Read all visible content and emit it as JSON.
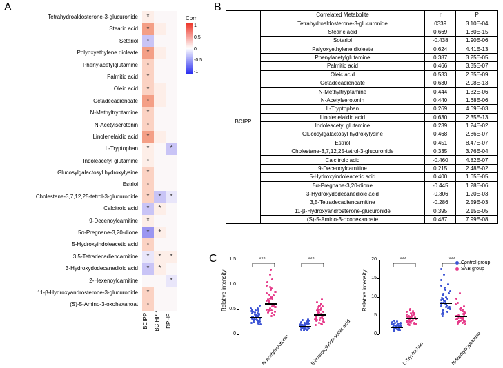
{
  "panel_labels": {
    "A": "A",
    "B": "B",
    "C": "C"
  },
  "heatmap": {
    "colorbar_title": "Corr",
    "colorbar_ticks": [
      "1",
      "0.5",
      "0",
      "-0.5",
      "-1"
    ],
    "gradient_top": "#ed3124",
    "gradient_mid": "#ffffff",
    "gradient_bot": "#2a2ef0",
    "columns": [
      "BCIPP",
      "BCIHPP",
      "DPHP"
    ],
    "star": "*",
    "color_pos3": "#f49f86",
    "color_pos2": "#fbd2c3",
    "color_pos1": "#fdeee8",
    "color_neu": "#fbf7f8",
    "color_neg1": "#e9e6fa",
    "color_neg2": "#c9c4f6",
    "color_neg3": "#9b96f1",
    "rows": [
      {
        "label": "Tetrahydroaldosterone-3-glucuronide",
        "cells": [
          {
            "c": "pos1",
            "s": 1
          },
          {
            "c": "neu",
            "s": 0
          },
          {
            "c": "neu",
            "s": 0
          }
        ]
      },
      {
        "label": "Stearic acid",
        "cells": [
          {
            "c": "pos3",
            "s": 1
          },
          {
            "c": "pos1",
            "s": 0
          },
          {
            "c": "neu",
            "s": 0
          }
        ]
      },
      {
        "label": "Setariol",
        "cells": [
          {
            "c": "neg2",
            "s": 1
          },
          {
            "c": "neu",
            "s": 0
          },
          {
            "c": "neu",
            "s": 0
          }
        ]
      },
      {
        "label": "Polyoxyethylene dioleate",
        "cells": [
          {
            "c": "pos3",
            "s": 1
          },
          {
            "c": "pos1",
            "s": 0
          },
          {
            "c": "neu",
            "s": 0
          }
        ]
      },
      {
        "label": "Phenylacetylglutamine",
        "cells": [
          {
            "c": "pos2",
            "s": 1
          },
          {
            "c": "neu",
            "s": 0
          },
          {
            "c": "neu",
            "s": 0
          }
        ]
      },
      {
        "label": "Palmitic acid",
        "cells": [
          {
            "c": "pos2",
            "s": 1
          },
          {
            "c": "neu",
            "s": 0
          },
          {
            "c": "neu",
            "s": 0
          }
        ]
      },
      {
        "label": "Oleic acid",
        "cells": [
          {
            "c": "pos2",
            "s": 1
          },
          {
            "c": "pos1",
            "s": 0
          },
          {
            "c": "neu",
            "s": 0
          }
        ]
      },
      {
        "label": "Octadecadienoate",
        "cells": [
          {
            "c": "pos3",
            "s": 1
          },
          {
            "c": "pos1",
            "s": 0
          },
          {
            "c": "neu",
            "s": 0
          }
        ]
      },
      {
        "label": "N-Methyltryptamine",
        "cells": [
          {
            "c": "pos2",
            "s": 1
          },
          {
            "c": "neu",
            "s": 0
          },
          {
            "c": "neu",
            "s": 0
          }
        ]
      },
      {
        "label": "N-Acetylserotonin",
        "cells": [
          {
            "c": "pos2",
            "s": 1
          },
          {
            "c": "neu",
            "s": 0
          },
          {
            "c": "neu",
            "s": 0
          }
        ]
      },
      {
        "label": "Linolenelaidic acid",
        "cells": [
          {
            "c": "pos3",
            "s": 1
          },
          {
            "c": "pos1",
            "s": 0
          },
          {
            "c": "neu",
            "s": 0
          }
        ]
      },
      {
        "label": "L-Tryptophan",
        "cells": [
          {
            "c": "pos1",
            "s": 1
          },
          {
            "c": "neu",
            "s": 0
          },
          {
            "c": "neg2",
            "s": 1
          }
        ]
      },
      {
        "label": "Indoleacetyl glutamine",
        "cells": [
          {
            "c": "pos1",
            "s": 1
          },
          {
            "c": "neu",
            "s": 0
          },
          {
            "c": "neu",
            "s": 0
          }
        ]
      },
      {
        "label": "Glucosylgalactosyl hydroxylysine",
        "cells": [
          {
            "c": "pos2",
            "s": 1
          },
          {
            "c": "neu",
            "s": 0
          },
          {
            "c": "neu",
            "s": 0
          }
        ]
      },
      {
        "label": "Estriol",
        "cells": [
          {
            "c": "pos2",
            "s": 1
          },
          {
            "c": "neu",
            "s": 0
          },
          {
            "c": "neu",
            "s": 0
          }
        ]
      },
      {
        "label": "Cholestane-3,7,12,25-tetrol-3-glucuronide",
        "cells": [
          {
            "c": "pos2",
            "s": 1
          },
          {
            "c": "neg2",
            "s": 1
          },
          {
            "c": "neg1",
            "s": 1
          }
        ]
      },
      {
        "label": "Calcitroic acid",
        "cells": [
          {
            "c": "neg2",
            "s": 1
          },
          {
            "c": "pos1",
            "s": 1
          },
          {
            "c": "neu",
            "s": 0
          }
        ]
      },
      {
        "label": "9-Decenoylcarnitine",
        "cells": [
          {
            "c": "pos1",
            "s": 1
          },
          {
            "c": "neu",
            "s": 0
          },
          {
            "c": "neu",
            "s": 0
          }
        ]
      },
      {
        "label": "5α-Pregnane-3,20-dione",
        "cells": [
          {
            "c": "neg3",
            "s": 1
          },
          {
            "c": "pos1",
            "s": 1
          },
          {
            "c": "neu",
            "s": 0
          }
        ]
      },
      {
        "label": "5-Hydroxyindoleacetic acid",
        "cells": [
          {
            "c": "pos2",
            "s": 1
          },
          {
            "c": "neu",
            "s": 0
          },
          {
            "c": "neu",
            "s": 0
          }
        ]
      },
      {
        "label": "3,5-Tetradecadiencarnitine",
        "cells": [
          {
            "c": "neg1",
            "s": 1
          },
          {
            "c": "pos1",
            "s": 1
          },
          {
            "c": "pos1",
            "s": 1
          }
        ]
      },
      {
        "label": "3-Hydroxydodecanedioic acid",
        "cells": [
          {
            "c": "neg2",
            "s": 1
          },
          {
            "c": "pos1",
            "s": 1
          },
          {
            "c": "neu",
            "s": 0
          }
        ]
      },
      {
        "label": "2-Hexenoylcarnitine",
        "cells": [
          {
            "c": "neu",
            "s": 0
          },
          {
            "c": "neu",
            "s": 0
          },
          {
            "c": "neg1",
            "s": 1
          }
        ]
      },
      {
        "label": "11-β-Hydroxyandrosterone-3-glucuronide",
        "cells": [
          {
            "c": "pos2",
            "s": 1
          },
          {
            "c": "neu",
            "s": 0
          },
          {
            "c": "neu",
            "s": 0
          }
        ]
      },
      {
        "label": "(S)-5-Amino-3-oxohexanoat",
        "cells": [
          {
            "c": "pos2",
            "s": 1
          },
          {
            "c": "neu",
            "s": 0
          },
          {
            "c": "neu",
            "s": 0
          }
        ]
      }
    ]
  },
  "table": {
    "headers": [
      "",
      "Correlated Metabolite",
      "r",
      "P"
    ],
    "group": "BCIPP",
    "rows": [
      [
        "Tetrahydroaldosterone-3-glucuronide",
        "0339",
        "3.10E-04"
      ],
      [
        "Stearic acid",
        "0.669",
        "1.80E-15"
      ],
      [
        "Sotariol",
        "-0.438",
        "1.90E-06"
      ],
      [
        "Palyoxyethylene dioleate",
        "0.624",
        "4.41E-13"
      ],
      [
        "Phenylacetylglutamine",
        "0.387",
        "3.25E-05"
      ],
      [
        "Palmitic acid",
        "0.466",
        "3.35E-07"
      ],
      [
        "Oleic acid",
        "0.533",
        "2.35E-09"
      ],
      [
        "Octadecadienoate",
        "0.630",
        "2.08E-13"
      ],
      [
        "N-Methyltryptamine",
        "0.444",
        "1.32E-06"
      ],
      [
        "N-Acetylserotonin",
        "0.440",
        "1.68E-06"
      ],
      [
        "L-Tryptophan",
        "0.269",
        "4.69E-03"
      ],
      [
        "Linolenelaidic acid",
        "0.630",
        "2.35E-13"
      ],
      [
        "Indoleacetyl glutamine",
        "0.239",
        "1.24E-02"
      ],
      [
        "Glucosylgalactosyl hydroxylysine",
        "0.468",
        "2.86E-07"
      ],
      [
        "Estriol",
        "0.451",
        "8.47E-07"
      ],
      [
        "Cholestane-3,7,12,25-tetrol-3-glucuronide",
        "0.335",
        "3.76E-04"
      ],
      [
        "Calcitroic acid",
        "-0.460",
        "4.82E-07"
      ],
      [
        "9-Decenoylcarnitine",
        "0.215",
        "2.48E-02"
      ],
      [
        "5-Hydroxyindoleacetic acid",
        "0.400",
        "1.65E-05"
      ],
      [
        "5α-Pregnane-3,20-dione",
        "-0.445",
        "1.28E-06"
      ],
      [
        "3-Hydroxydodecanedioic acid",
        "-0.306",
        "1.20E-03"
      ],
      [
        "3,5-Tetradecadiencarnitine",
        "-0.286",
        "2.59E-03"
      ],
      [
        "11-β-Hydroxyandrosterone-glucuronide",
        "0.395",
        "2.15E-05"
      ],
      [
        "(S)-5-Amino-3-oxohexanoate",
        "0.487",
        "7.99E-08"
      ]
    ]
  },
  "scatter": {
    "ylabel": "Relative intensity",
    "sig_label": "***",
    "control_color": "#3b53d4",
    "sab_color": "#e63b8a",
    "legend": [
      "Control group",
      "SAB group"
    ],
    "plots": [
      {
        "ymax": 1.5,
        "yticks": [
          0,
          0.5,
          1.0,
          1.5
        ],
        "ytick_labels": [
          "0",
          "0.5",
          "1.0",
          "1.5"
        ],
        "cats": [
          {
            "label": "N-Acetylserotonin",
            "ctrl": [
              0.4,
              0.36,
              0.26,
              0.49,
              0.3,
              0.35,
              0.38,
              0.23,
              0.52,
              0.46,
              0.27,
              0.3,
              0.42,
              0.57,
              0.2,
              0.33,
              0.36,
              0.5,
              0.28,
              0.41,
              0.31,
              0.44,
              0.25,
              0.37,
              0.29,
              0.47,
              0.34,
              0.22,
              0.39,
              0.26,
              0.43,
              0.31,
              0.48,
              0.35,
              0.24,
              0.45,
              0.3,
              0.38,
              0.27,
              0.52
            ],
            "ctrl_med": 0.35,
            "sab": [
              0.55,
              0.7,
              0.42,
              0.86,
              0.63,
              0.75,
              0.5,
              0.68,
              0.95,
              0.58,
              0.4,
              0.8,
              0.6,
              1.05,
              0.45,
              0.72,
              0.65,
              0.9,
              0.48,
              0.78,
              0.37,
              0.62,
              0.85,
              0.52,
              1.1,
              0.68,
              0.56,
              0.93,
              0.44,
              0.74,
              0.6,
              0.82,
              1.2,
              0.5,
              0.66,
              0.55,
              0.98,
              0.47,
              0.71,
              1.3
            ],
            "sab_med": 0.62
          },
          {
            "label": "5-Hydroxyindoleacetic acid",
            "ctrl": [
              0.18,
              0.15,
              0.2,
              0.1,
              0.26,
              0.13,
              0.17,
              0.22,
              0.08,
              0.24,
              0.12,
              0.19,
              0.14,
              0.28,
              0.16,
              0.21,
              0.09,
              0.25,
              0.17,
              0.11,
              0.23,
              0.18,
              0.14,
              0.27,
              0.2,
              0.12,
              0.3,
              0.15,
              0.19,
              0.1,
              0.22,
              0.16,
              0.24,
              0.13,
              0.07,
              0.21,
              0.17,
              0.11,
              0.26,
              0.19
            ],
            "ctrl_med": 0.17,
            "sab": [
              0.37,
              0.44,
              0.22,
              0.55,
              0.31,
              0.48,
              0.28,
              0.4,
              0.6,
              0.34,
              0.19,
              0.5,
              0.38,
              0.65,
              0.26,
              0.45,
              0.3,
              0.58,
              0.41,
              0.24,
              0.52,
              0.36,
              0.47,
              0.2,
              0.7,
              0.33,
              0.42,
              0.56,
              0.29,
              0.49,
              0.38,
              0.62,
              0.27,
              0.44,
              0.35,
              0.51,
              0.23,
              0.4,
              0.57,
              0.31
            ],
            "sab_med": 0.4
          }
        ]
      },
      {
        "ymax": 20,
        "yticks": [
          0,
          5,
          10,
          15,
          20
        ],
        "ytick_labels": [
          "0",
          "5",
          "10",
          "15",
          "20"
        ],
        "cats": [
          {
            "label": "L-Tryptophan",
            "ctrl": [
              1.8,
              2.4,
              1.2,
              3.0,
              1.6,
              2.0,
              1.4,
              2.8,
              0.9,
              2.2,
              1.7,
              3.4,
              1.1,
              2.6,
              1.9,
              1.3,
              3.1,
              2.1,
              1.5,
              2.5,
              1.0,
              2.9,
              1.8,
              1.2,
              3.6,
              2.3,
              1.4,
              2.7,
              1.6,
              2.0,
              0.8,
              2.4,
              1.9,
              1.3,
              3.2,
              2.1,
              1.5,
              2.8,
              1.7,
              2.2
            ],
            "ctrl_med": 2.0,
            "sab": [
              3.8,
              5.0,
              2.6,
              6.2,
              4.4,
              3.2,
              5.6,
              2.9,
              4.7,
              3.5,
              6.8,
              4.1,
              5.3,
              3.0,
              4.9,
              2.7,
              5.8,
              3.6,
              4.2,
              6.4,
              3.3,
              5.1,
              2.8,
              4.5,
              3.9,
              6.0,
              4.6,
              3.1,
              5.4,
              4.0,
              2.5,
              5.7,
              3.7,
              4.8,
              6.6,
              4.3,
              3.4,
              5.2,
              2.9,
              4.4
            ],
            "sab_med": 4.3
          },
          {
            "label": "N-Methyltryptamine",
            "ctrl": [
              7.5,
              9.0,
              5.5,
              11.5,
              8.0,
              6.5,
              10.5,
              7.0,
              13.5,
              8.5,
              6.0,
              9.5,
              7.8,
              12.5,
              5.0,
              10.0,
              8.3,
              6.8,
              14.5,
              9.3,
              7.3,
              11.0,
              5.8,
              8.8,
              12.0,
              7.0,
              9.8,
              6.3,
              16.0,
              8.4,
              7.6,
              10.8,
              5.5,
              9.2,
              13.0,
              8.0,
              6.7,
              17.5,
              7.4,
              9.6
            ],
            "ctrl_med": 8.4,
            "sab": [
              4.2,
              5.5,
              3.0,
              7.0,
              4.7,
              3.6,
              6.0,
              4.0,
              8.5,
              5.0,
              3.3,
              6.4,
              4.5,
              9.5,
              3.8,
              5.3,
              2.8,
              6.8,
              4.3,
              3.5,
              7.5,
              5.1,
              4.6,
              11.0,
              3.2,
              5.8,
              4.1,
              6.5,
              3.9,
              5.4,
              2.6,
              7.2,
              4.4,
              3.7,
              6.2,
              5.0,
              4.8,
              8.0,
              3.4,
              5.6
            ],
            "sab_med": 4.9
          }
        ]
      }
    ]
  }
}
